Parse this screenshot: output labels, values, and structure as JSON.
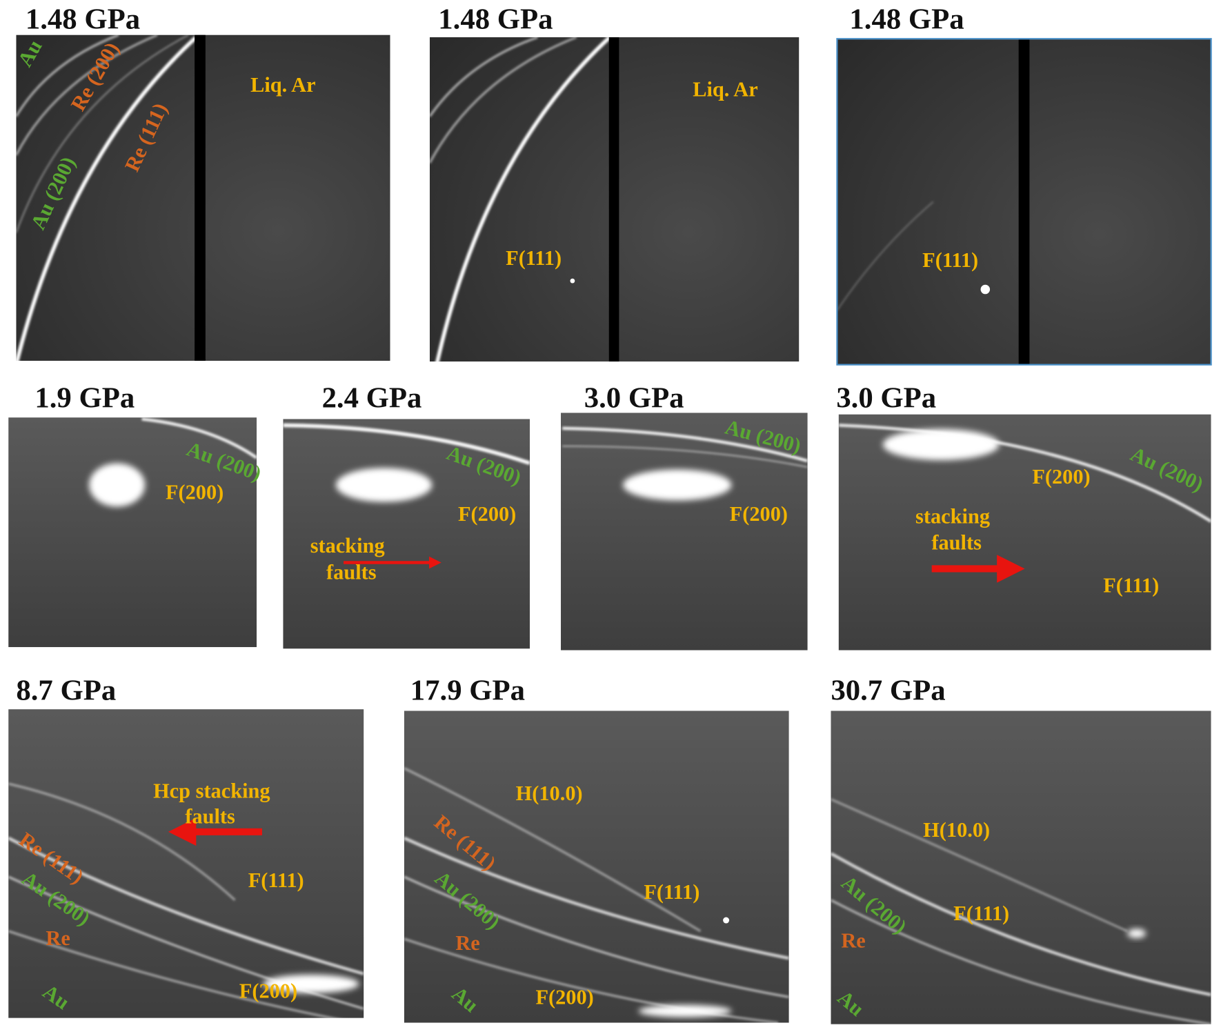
{
  "panels": [
    {
      "title": "1.48 GPa",
      "labels": [
        {
          "text": "Au",
          "color": "#5aa832"
        },
        {
          "text": "Re (200)",
          "color": "#d5651f"
        },
        {
          "text": "Au (200)",
          "color": "#5aa832"
        },
        {
          "text": "Re (111)",
          "color": "#d5651f"
        },
        {
          "text": "Liq. Ar",
          "color": "#f2b400"
        }
      ]
    },
    {
      "title": "1.48 GPa",
      "labels": [
        {
          "text": "Liq. Ar",
          "color": "#f2b400"
        },
        {
          "text": "F(111)",
          "color": "#f2b400"
        }
      ]
    },
    {
      "title": "1.48 GPa",
      "labels": [
        {
          "text": "F(111)",
          "color": "#f2b400"
        }
      ]
    },
    {
      "title": "1.9 GPa",
      "labels": [
        {
          "text": "Au (200)",
          "color": "#5aa832"
        },
        {
          "text": "F(200)",
          "color": "#f2b400"
        }
      ]
    },
    {
      "title": "2.4 GPa",
      "labels": [
        {
          "text": "Au (200)",
          "color": "#5aa832"
        },
        {
          "text": "F(200)",
          "color": "#f2b400"
        },
        {
          "text": "stacking",
          "color": "#f2b400"
        },
        {
          "text": "faults",
          "color": "#f2b400"
        }
      ]
    },
    {
      "title": "3.0 GPa",
      "labels": [
        {
          "text": "Au (200)",
          "color": "#5aa832"
        },
        {
          "text": "F(200)",
          "color": "#f2b400"
        }
      ]
    },
    {
      "title": "3.0 GPa",
      "labels": [
        {
          "text": "Au (200)",
          "color": "#5aa832"
        },
        {
          "text": "F(200)",
          "color": "#f2b400"
        },
        {
          "text": "stacking",
          "color": "#f2b400"
        },
        {
          "text": "faults",
          "color": "#f2b400"
        },
        {
          "text": "F(111)",
          "color": "#f2b400"
        }
      ]
    },
    {
      "title": "8.7 GPa",
      "labels": [
        {
          "text": "Hcp stacking",
          "color": "#f2b400"
        },
        {
          "text": "faults",
          "color": "#f2b400"
        },
        {
          "text": "Re (111)",
          "color": "#d5651f"
        },
        {
          "text": "Au (200)",
          "color": "#5aa832"
        },
        {
          "text": "Re",
          "color": "#d5651f"
        },
        {
          "text": "Au",
          "color": "#5aa832"
        },
        {
          "text": "F(111)",
          "color": "#f2b400"
        },
        {
          "text": "F(200)",
          "color": "#f2b400"
        }
      ]
    },
    {
      "title": "17.9 GPa",
      "labels": [
        {
          "text": "H(10.0)",
          "color": "#f2b400"
        },
        {
          "text": "Re (111)",
          "color": "#d5651f"
        },
        {
          "text": "Au (200)",
          "color": "#5aa832"
        },
        {
          "text": "Re",
          "color": "#d5651f"
        },
        {
          "text": "Au",
          "color": "#5aa832"
        },
        {
          "text": "F(111)",
          "color": "#f2b400"
        },
        {
          "text": "F(200)",
          "color": "#f2b400"
        }
      ]
    },
    {
      "title": "30.7 GPa",
      "labels": [
        {
          "text": "H(10.0)",
          "color": "#f2b400"
        },
        {
          "text": "Au (200)",
          "color": "#5aa832"
        },
        {
          "text": "Re",
          "color": "#d5651f"
        },
        {
          "text": "Au",
          "color": "#5aa832"
        },
        {
          "text": "F(111)",
          "color": "#f2b400"
        }
      ]
    }
  ]
}
